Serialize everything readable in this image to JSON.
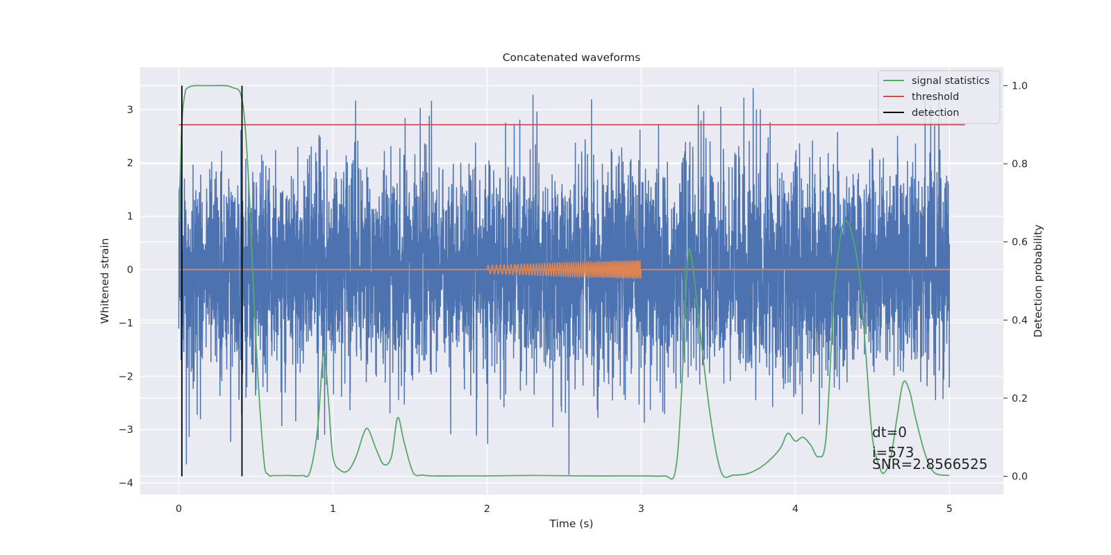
{
  "chart_data": {
    "type": "line",
    "title": "Concatenated waveforms",
    "xlabel": "Time (s)",
    "ylabel": "Whitened strain",
    "ylabel_right": "Detection probability",
    "xlim": [
      -0.25,
      5.35
    ],
    "ylim": [
      -4.22,
      3.79
    ],
    "ylim_right": [
      -0.047,
      1.047
    ],
    "x_ticks": [
      0,
      1,
      2,
      3,
      4,
      5
    ],
    "y_ticks": [
      -4,
      -3,
      -2,
      -1,
      0,
      1,
      2,
      3
    ],
    "y_ticks_right": [
      0.0,
      0.2,
      0.4,
      0.6,
      0.8,
      1.0
    ],
    "x_tick_labels": [
      "0",
      "1",
      "2",
      "3",
      "4",
      "5"
    ],
    "y_tick_labels": [
      "−4",
      "−3",
      "−2",
      "−1",
      "0",
      "1",
      "2",
      "3"
    ],
    "y_tick_labels_right": [
      "0.0",
      "0.2",
      "0.4",
      "0.6",
      "0.8",
      "1.0"
    ],
    "grid": true,
    "legend_position": "top-right",
    "legend": [
      {
        "label": "signal statistics",
        "color": "#55a868"
      },
      {
        "label": "threshold",
        "color": "#c44e52"
      },
      {
        "label": "detection",
        "color": "#000000"
      }
    ],
    "colors": {
      "strain": "#4c72b0",
      "template": "#dd8452",
      "signal_statistics": "#55a868",
      "threshold": "#c44e52",
      "detection": "#000000",
      "plot_background": "#eaeaf2"
    },
    "strain_noise": {
      "x_range": [
        0,
        5
      ],
      "typical_amplitude": 1.0,
      "min": -3.85,
      "max": 3.42
    },
    "template": {
      "x_range": [
        2,
        3
      ],
      "start_amplitude": 0.08,
      "end_amplitude": 0.17
    },
    "threshold": {
      "x_range": [
        0,
        5.1
      ],
      "value": 0.9
    },
    "detections": [
      0.02,
      0.41
    ],
    "signal_statistics": {
      "x": [
        0,
        0.02,
        0.04,
        0.06,
        0.1,
        0.15,
        0.2,
        0.3,
        0.35,
        0.4,
        0.43,
        0.46,
        0.5,
        0.55,
        0.58,
        0.62,
        0.7,
        0.8,
        0.85,
        0.9,
        0.94,
        0.97,
        1.0,
        1.05,
        1.1,
        1.15,
        1.2,
        1.23,
        1.28,
        1.33,
        1.38,
        1.42,
        1.46,
        1.52,
        1.58,
        1.65,
        1.8,
        2.0,
        2.3,
        2.6,
        3.0,
        3.15,
        3.22,
        3.26,
        3.3,
        3.33,
        3.38,
        3.45,
        3.52,
        3.6,
        3.7,
        3.8,
        3.9,
        3.95,
        4.0,
        4.05,
        4.1,
        4.15,
        4.2,
        4.25,
        4.3,
        4.34,
        4.38,
        4.42,
        4.46,
        4.5,
        4.55,
        4.58,
        4.62,
        4.66,
        4.7,
        4.74,
        4.78,
        4.84,
        4.9,
        5.0
      ],
      "y": [
        0.65,
        0.9,
        0.98,
        0.995,
        1.0,
        1.0,
        1.0,
        1.0,
        0.995,
        0.98,
        0.9,
        0.7,
        0.35,
        0.05,
        0.005,
        0.002,
        0.002,
        0.002,
        0.01,
        0.12,
        0.32,
        0.2,
        0.05,
        0.015,
        0.015,
        0.05,
        0.11,
        0.12,
        0.07,
        0.03,
        0.05,
        0.15,
        0.09,
        0.01,
        0.003,
        0.001,
        0.001,
        0.001,
        0.002,
        0.001,
        0.001,
        0.001,
        0.01,
        0.2,
        0.55,
        0.55,
        0.38,
        0.15,
        0.01,
        0.003,
        0.008,
        0.03,
        0.07,
        0.11,
        0.09,
        0.1,
        0.08,
        0.05,
        0.1,
        0.45,
        0.63,
        0.65,
        0.6,
        0.5,
        0.3,
        0.1,
        0.02,
        0.01,
        0.05,
        0.15,
        0.24,
        0.22,
        0.15,
        0.06,
        0.01,
        0.002
      ]
    },
    "annotations": [
      "dt=0",
      "i=573",
      "SNR=2.8566525"
    ]
  }
}
